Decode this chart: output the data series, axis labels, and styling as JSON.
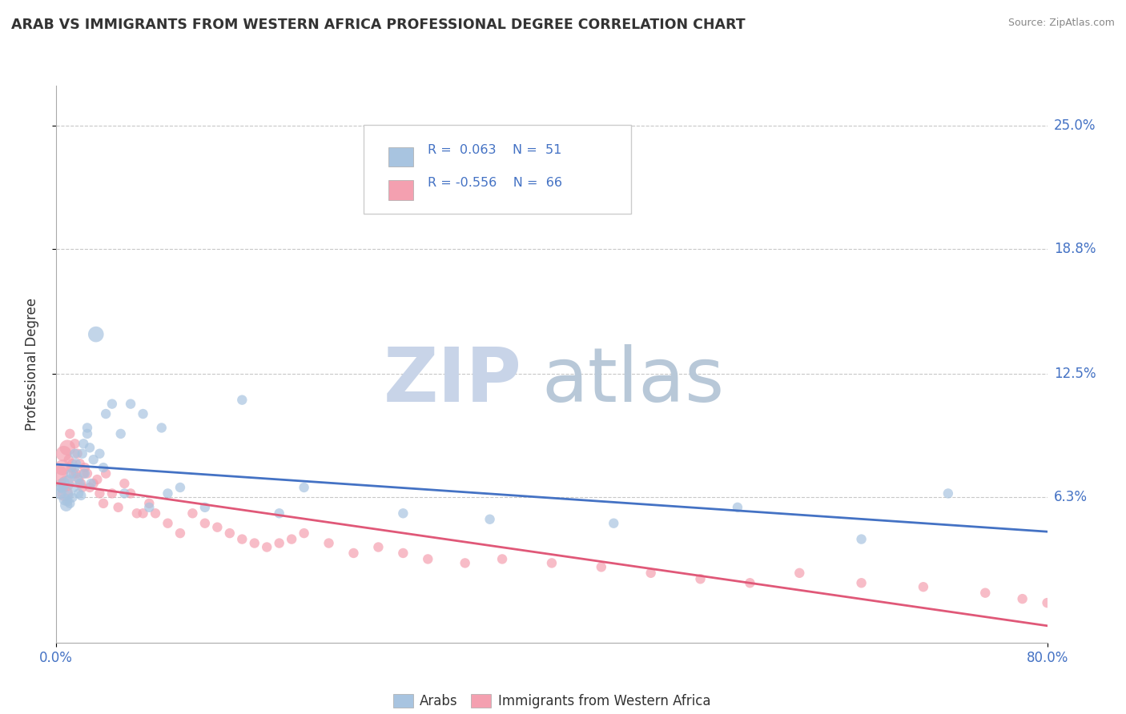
{
  "title": "ARAB VS IMMIGRANTS FROM WESTERN AFRICA PROFESSIONAL DEGREE CORRELATION CHART",
  "source": "Source: ZipAtlas.com",
  "ylabel_label": "Professional Degree",
  "xlim": [
    0.0,
    80.0
  ],
  "ylim": [
    -1.0,
    27.0
  ],
  "ytick_positions": [
    6.3,
    12.5,
    18.8,
    25.0
  ],
  "ytick_labels": [
    "6.3%",
    "12.5%",
    "18.8%",
    "25.0%"
  ],
  "xtick_positions": [
    0.0,
    80.0
  ],
  "xtick_labels": [
    "0.0%",
    "80.0%"
  ],
  "grid_color": "#c8c8c8",
  "background_color": "#ffffff",
  "watermark_zip": "ZIP",
  "watermark_atlas": "atlas",
  "watermark_color_zip": "#c8d4e8",
  "watermark_color_atlas": "#b8c8d8",
  "legend_r1": "R =  0.063",
  "legend_n1": "N =  51",
  "legend_r2": "R = -0.556",
  "legend_n2": "N =  66",
  "series1_color": "#a8c4e0",
  "series2_color": "#f4a0b0",
  "trend1_color": "#4472c4",
  "trend2_color": "#e05878",
  "tick_color": "#4472c4",
  "arab_x": [
    0.3,
    0.5,
    0.6,
    0.7,
    0.8,
    0.9,
    1.0,
    1.0,
    1.1,
    1.2,
    1.3,
    1.4,
    1.5,
    1.6,
    1.7,
    1.8,
    1.9,
    2.0,
    2.1,
    2.2,
    2.3,
    2.5,
    2.7,
    2.8,
    3.0,
    3.2,
    3.5,
    4.0,
    4.5,
    5.2,
    6.0,
    7.0,
    8.5,
    10.0,
    12.0,
    15.0,
    20.0,
    28.0,
    35.0,
    45.0,
    55.0,
    65.0,
    72.0,
    0.4,
    1.5,
    2.5,
    3.8,
    5.5,
    7.5,
    9.0,
    18.0
  ],
  "arab_y": [
    6.5,
    6.8,
    7.0,
    6.2,
    5.9,
    6.1,
    6.4,
    7.2,
    6.0,
    7.5,
    6.3,
    6.8,
    7.8,
    8.0,
    7.3,
    6.5,
    7.0,
    6.4,
    8.5,
    9.0,
    7.5,
    9.5,
    8.8,
    7.0,
    8.2,
    14.5,
    8.5,
    10.5,
    11.0,
    9.5,
    11.0,
    10.5,
    9.8,
    6.8,
    5.8,
    11.2,
    6.8,
    5.5,
    5.2,
    5.0,
    5.8,
    4.2,
    6.5,
    6.8,
    8.5,
    9.8,
    7.8,
    6.5,
    5.8,
    6.5,
    5.5
  ],
  "africa_x": [
    0.3,
    0.5,
    0.6,
    0.7,
    0.8,
    0.9,
    1.0,
    1.1,
    1.2,
    1.3,
    1.4,
    1.5,
    1.6,
    1.7,
    1.8,
    1.9,
    2.0,
    2.1,
    2.2,
    2.3,
    2.5,
    2.7,
    3.0,
    3.3,
    3.5,
    3.8,
    4.0,
    4.5,
    5.0,
    5.5,
    6.0,
    6.5,
    7.0,
    7.5,
    8.0,
    9.0,
    10.0,
    11.0,
    12.0,
    13.0,
    14.0,
    15.0,
    16.0,
    17.0,
    18.0,
    19.0,
    20.0,
    22.0,
    24.0,
    26.0,
    28.0,
    30.0,
    33.0,
    36.0,
    40.0,
    44.0,
    48.0,
    52.0,
    56.0,
    60.0,
    65.0,
    70.0,
    75.0,
    78.0,
    80.0,
    0.4
  ],
  "africa_y": [
    7.5,
    7.8,
    8.5,
    6.5,
    7.0,
    8.8,
    8.2,
    9.5,
    7.8,
    8.0,
    7.5,
    9.0,
    7.5,
    8.5,
    7.2,
    8.0,
    7.0,
    6.8,
    7.5,
    7.8,
    7.5,
    6.8,
    7.0,
    7.2,
    6.5,
    6.0,
    7.5,
    6.5,
    5.8,
    7.0,
    6.5,
    5.5,
    5.5,
    6.0,
    5.5,
    5.0,
    4.5,
    5.5,
    5.0,
    4.8,
    4.5,
    4.2,
    4.0,
    3.8,
    4.0,
    4.2,
    4.5,
    4.0,
    3.5,
    3.8,
    3.5,
    3.2,
    3.0,
    3.2,
    3.0,
    2.8,
    2.5,
    2.2,
    2.0,
    2.5,
    2.0,
    1.8,
    1.5,
    1.2,
    1.0,
    7.0
  ]
}
